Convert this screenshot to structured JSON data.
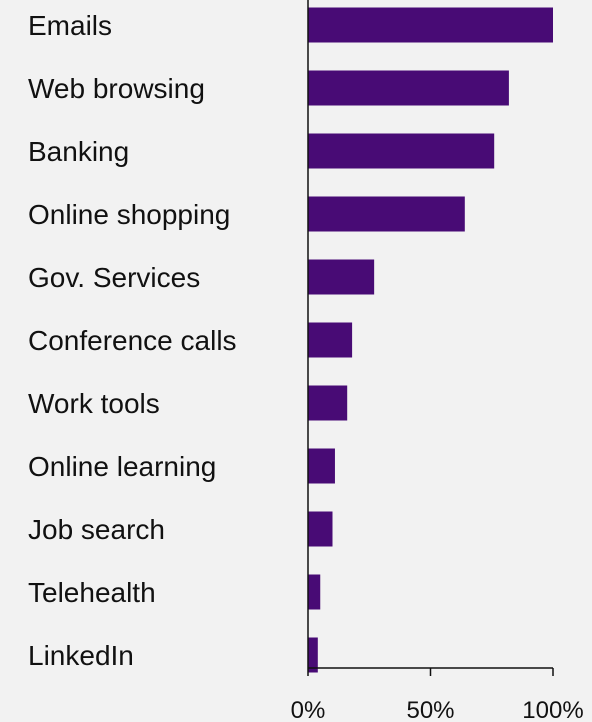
{
  "chart_data": {
    "type": "bar",
    "orientation": "horizontal",
    "categories": [
      "Emails",
      "Web browsing",
      "Banking",
      "Online shopping",
      "Gov. Services",
      "Conference calls",
      "Work tools",
      "Online learning",
      "Job search",
      "Telehealth",
      "LinkedIn"
    ],
    "values": [
      100,
      82,
      76,
      64,
      27,
      18,
      16,
      11,
      10,
      5,
      4
    ],
    "xlim": [
      0,
      100
    ],
    "x_ticks": [
      "0%",
      "50%",
      "100%"
    ],
    "x_tick_values": [
      0,
      50,
      100
    ],
    "bar_color": "#480b75",
    "axis_color": "#111111",
    "background": "#f2f2f2",
    "grid": false,
    "legend": "none"
  }
}
